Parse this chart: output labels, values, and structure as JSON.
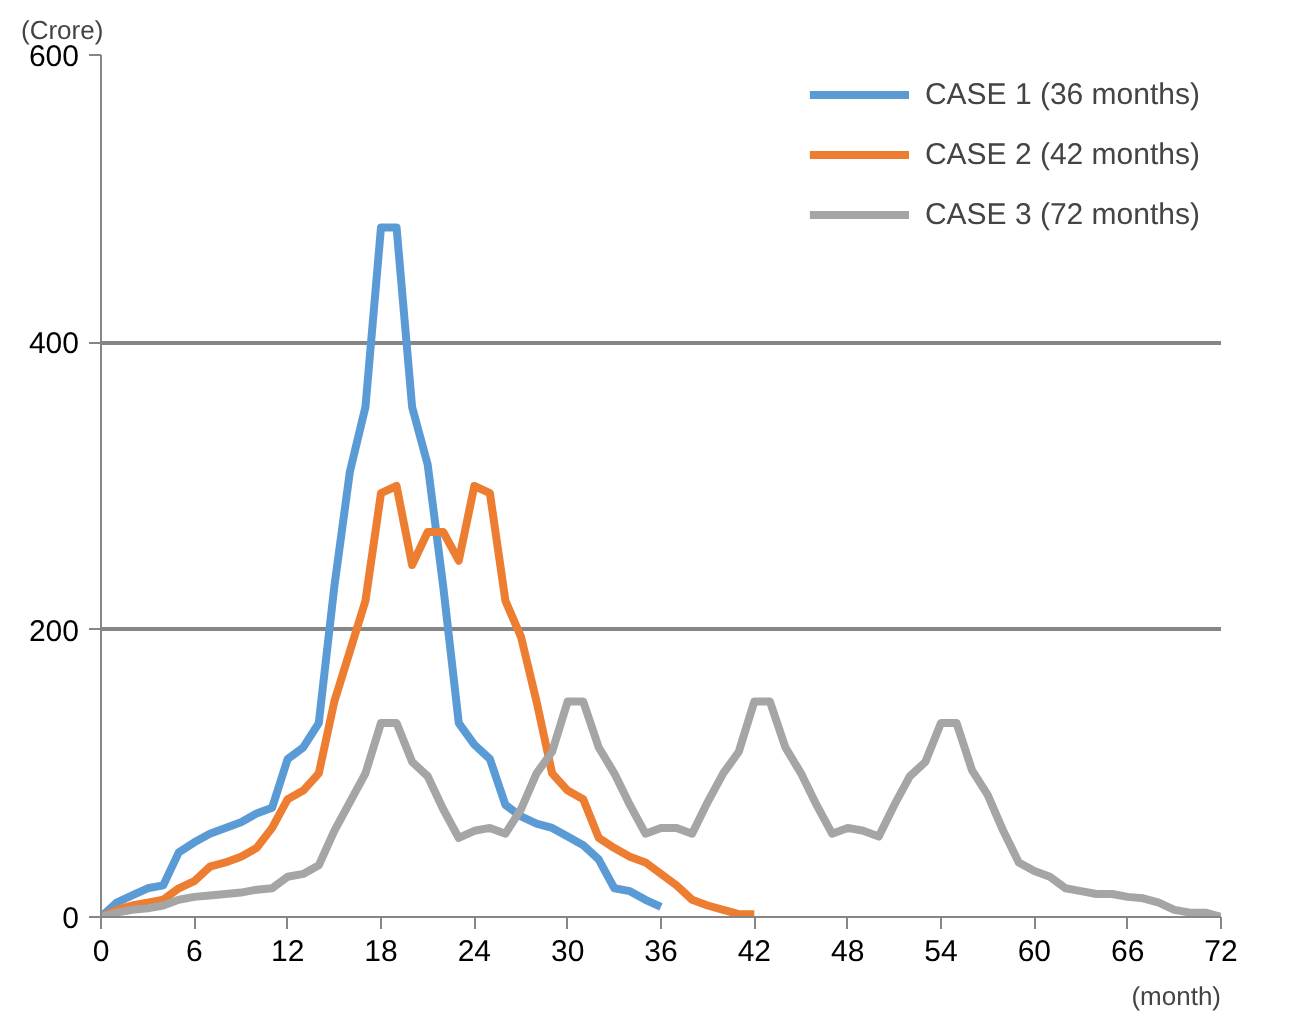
{
  "chart_data": {
    "type": "line",
    "xlabel": "(month)",
    "ylabel": "(Crore)",
    "xlim": [
      0,
      72
    ],
    "xticks": [
      0,
      6,
      12,
      18,
      24,
      30,
      36,
      42,
      48,
      54,
      60,
      66,
      72
    ],
    "ylim": [
      0,
      600
    ],
    "yticks": [
      0,
      200,
      400,
      600
    ],
    "grid": "y",
    "legend": "top right",
    "marker": "none",
    "line_style": "solid",
    "series": [
      {
        "name": "CASE 1 (36 months)",
        "color": "#5b9bd5",
        "x": [
          0,
          1,
          2,
          3,
          4,
          5,
          6,
          7,
          8,
          9,
          10,
          11,
          12,
          13,
          14,
          15,
          16,
          17,
          18,
          19,
          20,
          21,
          22,
          23,
          24,
          25,
          26,
          27,
          28,
          29,
          30,
          31,
          32,
          33,
          34,
          35,
          36
        ],
        "values": [
          0,
          10,
          15,
          20,
          22,
          45,
          52,
          58,
          62,
          66,
          72,
          76,
          110,
          118,
          135,
          230,
          310,
          355,
          480,
          480,
          355,
          315,
          230,
          135,
          120,
          110,
          78,
          70,
          65,
          62,
          56,
          50,
          40,
          20,
          18,
          12,
          7
        ]
      },
      {
        "name": "CASE 2 (42 months)",
        "color": "#ed7d31",
        "x": [
          0,
          1,
          2,
          3,
          4,
          5,
          6,
          7,
          8,
          9,
          10,
          11,
          12,
          13,
          14,
          15,
          16,
          17,
          18,
          19,
          20,
          21,
          22,
          23,
          24,
          25,
          26,
          27,
          28,
          29,
          30,
          31,
          32,
          33,
          34,
          35,
          36,
          37,
          38,
          39,
          40,
          41,
          42
        ],
        "values": [
          0,
          5,
          8,
          10,
          12,
          20,
          25,
          35,
          38,
          42,
          48,
          62,
          82,
          88,
          100,
          150,
          185,
          220,
          295,
          300,
          245,
          268,
          268,
          248,
          300,
          295,
          220,
          195,
          150,
          100,
          88,
          82,
          55,
          48,
          42,
          38,
          30,
          22,
          12,
          8,
          5,
          2,
          2
        ]
      },
      {
        "name": "CASE 3 (72 months)",
        "color": "#a5a5a5",
        "x": [
          0,
          1,
          2,
          3,
          4,
          5,
          6,
          7,
          8,
          9,
          10,
          11,
          12,
          13,
          14,
          15,
          16,
          17,
          18,
          19,
          20,
          21,
          22,
          23,
          24,
          25,
          26,
          27,
          28,
          29,
          30,
          31,
          32,
          33,
          34,
          35,
          36,
          37,
          38,
          39,
          40,
          41,
          42,
          43,
          44,
          45,
          46,
          47,
          48,
          49,
          50,
          51,
          52,
          53,
          54,
          55,
          56,
          57,
          58,
          59,
          60,
          61,
          62,
          63,
          64,
          65,
          66,
          67,
          68,
          69,
          70,
          71,
          72
        ],
        "values": [
          0,
          3,
          5,
          6,
          8,
          12,
          14,
          15,
          16,
          17,
          19,
          20,
          28,
          30,
          36,
          60,
          80,
          100,
          135,
          135,
          108,
          98,
          75,
          55,
          60,
          62,
          58,
          75,
          100,
          115,
          150,
          150,
          118,
          100,
          78,
          58,
          62,
          62,
          58,
          80,
          100,
          115,
          150,
          150,
          118,
          100,
          78,
          58,
          62,
          60,
          56,
          78,
          98,
          108,
          135,
          135,
          102,
          85,
          60,
          38,
          32,
          28,
          20,
          18,
          16,
          16,
          14,
          13,
          10,
          5,
          3,
          3,
          0
        ]
      }
    ]
  }
}
